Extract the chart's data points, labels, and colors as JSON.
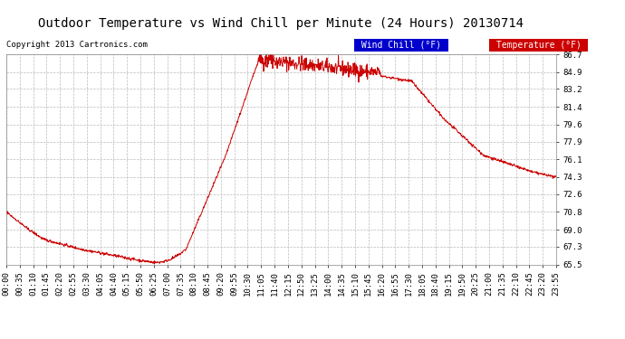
{
  "title": "Outdoor Temperature vs Wind Chill per Minute (24 Hours) 20130714",
  "copyright": "Copyright 2013 Cartronics.com",
  "legend_wind_chill": "Wind Chill (°F)",
  "legend_temperature": "Temperature (°F)",
  "line_color": "#cc0000",
  "background_color": "#ffffff",
  "grid_color": "#bbbbbb",
  "ylim": [
    65.5,
    86.7
  ],
  "yticks": [
    65.5,
    67.3,
    69.0,
    70.8,
    72.6,
    74.3,
    76.1,
    77.9,
    79.6,
    81.4,
    83.2,
    84.9,
    86.7
  ],
  "x_tick_labels": [
    "00:00",
    "00:35",
    "01:10",
    "01:45",
    "02:20",
    "02:55",
    "03:30",
    "04:05",
    "04:40",
    "05:15",
    "05:50",
    "06:25",
    "07:00",
    "07:35",
    "08:10",
    "08:45",
    "09:20",
    "09:55",
    "10:30",
    "11:05",
    "11:40",
    "12:15",
    "12:50",
    "13:25",
    "14:00",
    "14:35",
    "15:10",
    "15:45",
    "16:20",
    "16:55",
    "17:30",
    "18:05",
    "18:40",
    "19:15",
    "19:50",
    "20:25",
    "21:00",
    "21:35",
    "22:10",
    "22:45",
    "23:20",
    "23:55"
  ],
  "title_fontsize": 10,
  "copyright_fontsize": 6.5,
  "tick_fontsize": 6.5,
  "legend_fontsize": 7
}
